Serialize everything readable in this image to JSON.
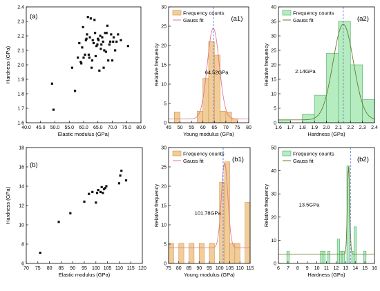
{
  "chart_data": [
    {
      "id": "a",
      "type": "scatter",
      "panel_label": "(a)",
      "xlabel": "Elastic modulus (GPa)",
      "ylabel": "Hardness (GPa)",
      "xlim": [
        40,
        80
      ],
      "ylim": [
        1.6,
        2.4
      ],
      "xticks": [
        40,
        45,
        50,
        55,
        60,
        65,
        70,
        75,
        80
      ],
      "yticks": [
        1.6,
        1.7,
        1.8,
        1.9,
        2.0,
        2.1,
        2.2,
        2.3,
        2.4
      ],
      "tick_decimals": 1,
      "points": [
        [
          49,
          1.87
        ],
        [
          49.5,
          1.69
        ],
        [
          56,
          1.98
        ],
        [
          57,
          1.82
        ],
        [
          58,
          2.05
        ],
        [
          58.5,
          2.15
        ],
        [
          59,
          2.02
        ],
        [
          59.2,
          2.01
        ],
        [
          59.5,
          2.12
        ],
        [
          59.8,
          2.26
        ],
        [
          60,
          2.05
        ],
        [
          60.5,
          2.07
        ],
        [
          60.8,
          2.17
        ],
        [
          61,
          2.18
        ],
        [
          61.2,
          2.21
        ],
        [
          61.5,
          2.33
        ],
        [
          61.8,
          2.07
        ],
        [
          62,
          2.05
        ],
        [
          62.2,
          2.19
        ],
        [
          62.5,
          2.32
        ],
        [
          62.8,
          1.98
        ],
        [
          63,
          2.03
        ],
        [
          63.2,
          2.17
        ],
        [
          63.5,
          2.15
        ],
        [
          63.8,
          2.31
        ],
        [
          64,
          2.22
        ],
        [
          64.2,
          2.06
        ],
        [
          64.5,
          2.13
        ],
        [
          64.8,
          2.14
        ],
        [
          65,
          2.18
        ],
        [
          65.2,
          2.17
        ],
        [
          65.5,
          1.96
        ],
        [
          65.8,
          2.2
        ],
        [
          66,
          2.11
        ],
        [
          66.2,
          2.14
        ],
        [
          66.5,
          2.19
        ],
        [
          66.8,
          2.16
        ],
        [
          67,
          1.98
        ],
        [
          67.2,
          2.1
        ],
        [
          67.5,
          2.22
        ],
        [
          67.8,
          2.09
        ],
        [
          68,
          2.22
        ],
        [
          68.3,
          2.27
        ],
        [
          68.6,
          2.03
        ],
        [
          69,
          2.14
        ],
        [
          69.3,
          2.16
        ],
        [
          69.6,
          2.21
        ],
        [
          70,
          2.03
        ],
        [
          70.3,
          2.16
        ],
        [
          70.5,
          2.19
        ],
        [
          71,
          2.1
        ],
        [
          71.5,
          2.16
        ],
        [
          72,
          2.21
        ],
        [
          73,
          2.17
        ],
        [
          75.5,
          2.13
        ]
      ]
    },
    {
      "id": "a1",
      "type": "bar",
      "panel_label": "(a1)",
      "xlabel": "Young modulus (GPa)",
      "ylabel": "Relative frequency",
      "xlim": [
        45,
        80
      ],
      "ylim": [
        0,
        30
      ],
      "xticks": [
        45,
        50,
        55,
        60,
        65,
        70,
        75,
        80
      ],
      "yticks": [
        0,
        5,
        10,
        15,
        20,
        25,
        30
      ],
      "tick_decimals": 0,
      "bin_width": 2.5,
      "bins": [
        [
          48.75,
          2.8
        ],
        [
          58.75,
          3.0
        ],
        [
          61.25,
          11.5
        ],
        [
          63.75,
          21.0
        ],
        [
          66.25,
          17.5
        ],
        [
          68.75,
          3.0
        ],
        [
          71.25,
          2.8
        ],
        [
          73.75,
          1.0
        ]
      ],
      "fit": {
        "type": "gauss",
        "center": 64.52,
        "sigma": 2.6,
        "amplitude": 23.5,
        "baseline": 1.0
      },
      "mean_line": 64.52,
      "annotation": "64.52GPa",
      "legend": [
        "Frequency counts",
        "Gauss fit"
      ],
      "bar_color": "#f2cc99",
      "bar_edge": "#c9964a",
      "fit_color": "#e07a8a"
    },
    {
      "id": "a2",
      "type": "bar",
      "panel_label": "(a2)",
      "xlabel": "Hardness (GPa)",
      "ylabel": "Relative frequency",
      "xlim": [
        1.6,
        2.4
      ],
      "ylim": [
        0,
        40
      ],
      "xticks": [
        1.6,
        1.7,
        1.8,
        1.9,
        2.0,
        2.1,
        2.2,
        2.3,
        2.4
      ],
      "yticks": [
        0,
        5,
        10,
        15,
        20,
        25,
        30,
        35,
        40
      ],
      "tick_decimals": 0,
      "xtick_decimals": 1,
      "bin_width": 0.1,
      "bins": [
        [
          1.65,
          1.0
        ],
        [
          1.85,
          3.0
        ],
        [
          1.95,
          9.5
        ],
        [
          2.05,
          24.0
        ],
        [
          2.15,
          35.0
        ],
        [
          2.25,
          20.0
        ],
        [
          2.35,
          8.0
        ]
      ],
      "fit": {
        "type": "gauss",
        "center": 2.14,
        "sigma": 0.085,
        "amplitude": 33.0,
        "baseline": 1.0
      },
      "mean_line": 2.14,
      "annotation": "2.14GPa",
      "legend": [
        "Frequency counts",
        "Gauss fit"
      ],
      "bar_color": "#b5ecc0",
      "bar_edge": "#4fa866",
      "fit_color": "#6b7a2a"
    },
    {
      "id": "b",
      "type": "scatter",
      "panel_label": "(b)",
      "xlabel": "Elastic modulus (GPa)",
      "ylabel": "Hardness (GPa)",
      "xlim": [
        70,
        120
      ],
      "ylim": [
        6,
        18
      ],
      "xticks": [
        70,
        75,
        80,
        85,
        90,
        95,
        100,
        105,
        110,
        115,
        120
      ],
      "yticks": [
        6,
        8,
        10,
        12,
        14,
        16,
        18
      ],
      "tick_decimals": 0,
      "points": [
        [
          76,
          7.1
        ],
        [
          84,
          10.3
        ],
        [
          89,
          11.2
        ],
        [
          95,
          12.4
        ],
        [
          97,
          13.2
        ],
        [
          98.5,
          13.4
        ],
        [
          100,
          12.3
        ],
        [
          100.5,
          13.3
        ],
        [
          101,
          13.6
        ],
        [
          102,
          13.4
        ],
        [
          102.5,
          13.9
        ],
        [
          103,
          13.3
        ],
        [
          103.5,
          13.7
        ],
        [
          104,
          13.8
        ],
        [
          104.5,
          14.0
        ],
        [
          110,
          14.3
        ],
        [
          110.5,
          15.1
        ],
        [
          111,
          15.6
        ],
        [
          113,
          14.6
        ]
      ]
    },
    {
      "id": "b1",
      "type": "bar",
      "panel_label": "(b1)",
      "xlabel": "Young modulus (GPa)",
      "ylabel": "Relative frequency",
      "xlim": [
        75,
        115
      ],
      "ylim": [
        0,
        30
      ],
      "xticks": [
        75,
        80,
        85,
        90,
        95,
        100,
        105,
        110,
        115
      ],
      "yticks": [
        0,
        5,
        10,
        15,
        20,
        25,
        30
      ],
      "tick_decimals": 0,
      "bin_width": 2.5,
      "bins": [
        [
          76.25,
          5.2
        ],
        [
          81.25,
          5.2
        ],
        [
          86.25,
          5.2
        ],
        [
          91.25,
          5.2
        ],
        [
          96.25,
          5.2
        ],
        [
          101.25,
          21.0
        ],
        [
          103.75,
          26.3
        ],
        [
          106.25,
          5.2
        ],
        [
          108.75,
          5.2
        ],
        [
          113.75,
          15.8
        ]
      ],
      "fit": {
        "type": "gauss",
        "center": 102.5,
        "sigma": 1.6,
        "amplitude": 22.0,
        "baseline": 4.0
      },
      "mean_line": 101.78,
      "annotation": "101.78GPa",
      "legend": [
        "Frequency counts",
        "Gauss fit"
      ],
      "bar_color": "#f2cc99",
      "bar_edge": "#c9964a",
      "fit_color": "#e07a8a"
    },
    {
      "id": "b2",
      "type": "bar",
      "panel_label": "(b2)",
      "xlabel": "Hardness (GPa)",
      "ylabel": "Relative frequency",
      "xlim": [
        6,
        16
      ],
      "ylim": [
        0,
        50
      ],
      "xticks": [
        6,
        7,
        8,
        9,
        10,
        11,
        12,
        13,
        14,
        15,
        16
      ],
      "yticks": [
        0,
        10,
        20,
        30,
        40,
        50
      ],
      "tick_decimals": 0,
      "bin_width": 0.25,
      "bins": [
        [
          7.0,
          5.3
        ],
        [
          10.5,
          5.3
        ],
        [
          10.75,
          5.3
        ],
        [
          11.25,
          5.3
        ],
        [
          12.25,
          10.5
        ],
        [
          12.5,
          5.3
        ],
        [
          12.75,
          5.3
        ],
        [
          13.25,
          42.1
        ],
        [
          13.75,
          5.3
        ],
        [
          14.0,
          15.8
        ],
        [
          15.0,
          5.3
        ]
      ],
      "fit": {
        "type": "gauss",
        "center": 13.3,
        "sigma": 0.12,
        "amplitude": 38.0,
        "baseline": 4.0
      },
      "mean_line": 13.5,
      "annotation": "13.5GPa",
      "legend": [
        "Frequency counts",
        "Gauss fit"
      ],
      "bar_color": "#b5ecc0",
      "bar_edge": "#4fa866",
      "fit_color": "#6b7a2a"
    }
  ],
  "colors": {
    "axis": "#000000",
    "point": "#111111",
    "mean_line": "#4a6fd8"
  }
}
